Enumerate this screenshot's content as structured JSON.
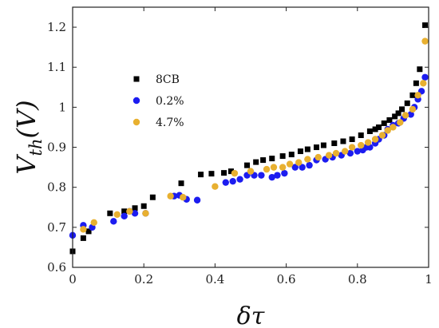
{
  "chart_data": {
    "type": "scatter",
    "xlabel": "δτ",
    "ylabel": "V_th(V)",
    "ylabel_parts": {
      "main": "V",
      "sub": "th",
      "unit": "(V)"
    },
    "xlim": [
      0,
      1
    ],
    "ylim": [
      0.6,
      1.25
    ],
    "xticks": [
      0,
      0.2,
      0.4,
      0.6,
      0.8,
      1
    ],
    "xtick_labels": [
      "0",
      "0.2",
      "0.4",
      "0.6",
      "0.8",
      "1"
    ],
    "yticks": [
      0.6,
      0.7,
      0.8,
      0.9,
      1.0,
      1.1,
      1.2
    ],
    "ytick_labels": [
      "0.6",
      "0.7",
      "0.8",
      "0.9",
      "1",
      "1.1",
      "1.2"
    ],
    "grid": false,
    "legend_position": "top-left",
    "series": [
      {
        "name": "8CB",
        "marker": "square",
        "color": "#000000",
        "x": [
          0.0,
          0.03,
          0.045,
          0.105,
          0.145,
          0.175,
          0.2,
          0.225,
          0.305,
          0.36,
          0.39,
          0.425,
          0.445,
          0.49,
          0.515,
          0.535,
          0.56,
          0.59,
          0.615,
          0.64,
          0.66,
          0.685,
          0.705,
          0.735,
          0.76,
          0.785,
          0.81,
          0.835,
          0.85,
          0.86,
          0.875,
          0.89,
          0.905,
          0.915,
          0.925,
          0.94,
          0.955,
          0.965,
          0.975,
          0.99
        ],
        "y": [
          0.64,
          0.673,
          0.69,
          0.735,
          0.74,
          0.748,
          0.753,
          0.775,
          0.81,
          0.832,
          0.834,
          0.836,
          0.84,
          0.855,
          0.863,
          0.868,
          0.872,
          0.878,
          0.882,
          0.89,
          0.895,
          0.9,
          0.905,
          0.91,
          0.915,
          0.92,
          0.93,
          0.94,
          0.945,
          0.95,
          0.96,
          0.968,
          0.977,
          0.985,
          0.995,
          1.01,
          1.03,
          1.06,
          1.095,
          1.205
        ]
      },
      {
        "name": "0.2%",
        "marker": "circle",
        "color": "#1c1cf0",
        "x": [
          0.0,
          0.03,
          0.055,
          0.115,
          0.145,
          0.16,
          0.175,
          0.205,
          0.285,
          0.3,
          0.32,
          0.35,
          0.43,
          0.45,
          0.47,
          0.49,
          0.51,
          0.53,
          0.56,
          0.575,
          0.595,
          0.625,
          0.645,
          0.665,
          0.685,
          0.71,
          0.73,
          0.755,
          0.78,
          0.8,
          0.815,
          0.825,
          0.835,
          0.85,
          0.86,
          0.875,
          0.885,
          0.9,
          0.915,
          0.93,
          0.95,
          0.96,
          0.97,
          0.98,
          0.99
        ],
        "y": [
          0.68,
          0.705,
          0.7,
          0.715,
          0.728,
          0.74,
          0.735,
          0.735,
          0.778,
          0.78,
          0.77,
          0.768,
          0.812,
          0.815,
          0.82,
          0.83,
          0.83,
          0.83,
          0.825,
          0.83,
          0.835,
          0.85,
          0.85,
          0.855,
          0.868,
          0.87,
          0.875,
          0.88,
          0.885,
          0.89,
          0.893,
          0.9,
          0.9,
          0.91,
          0.92,
          0.93,
          0.945,
          0.955,
          0.96,
          0.972,
          0.982,
          1.0,
          1.02,
          1.04,
          1.075
        ]
      },
      {
        "name": "4.7%",
        "marker": "circle",
        "color": "#e8b030",
        "x": [
          0.03,
          0.06,
          0.125,
          0.16,
          0.205,
          0.275,
          0.31,
          0.4,
          0.455,
          0.5,
          0.545,
          0.565,
          0.59,
          0.61,
          0.635,
          0.66,
          0.69,
          0.72,
          0.74,
          0.765,
          0.785,
          0.81,
          0.83,
          0.85,
          0.87,
          0.885,
          0.9,
          0.92,
          0.935,
          0.955,
          0.97,
          0.985,
          0.99
        ],
        "y": [
          0.695,
          0.712,
          0.732,
          0.74,
          0.735,
          0.778,
          0.775,
          0.802,
          0.835,
          0.84,
          0.845,
          0.85,
          0.85,
          0.858,
          0.862,
          0.87,
          0.875,
          0.88,
          0.885,
          0.89,
          0.9,
          0.905,
          0.912,
          0.92,
          0.93,
          0.942,
          0.95,
          0.962,
          0.98,
          0.995,
          1.03,
          1.06,
          1.165
        ]
      }
    ]
  }
}
